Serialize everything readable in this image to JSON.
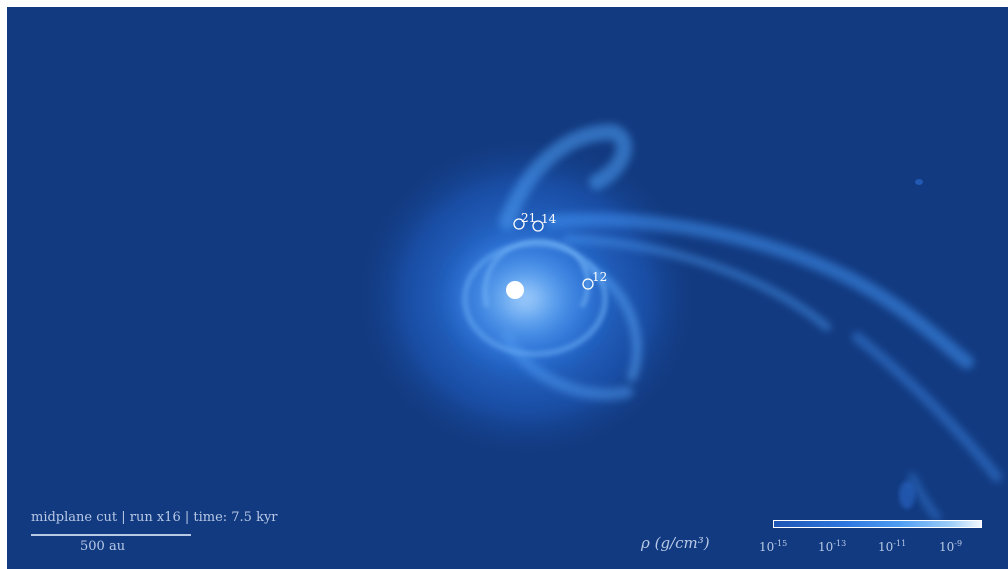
{
  "caption": "midplane cut | run x16 | time: 7.5 kyr",
  "scalebar": {
    "label": "500 au"
  },
  "colorbar": {
    "title": "ρ (g/cm³)",
    "ticks": [
      {
        "base": "10",
        "exp": "-15"
      },
      {
        "base": "10",
        "exp": "-13"
      },
      {
        "base": "10",
        "exp": "-11"
      },
      {
        "base": "10",
        "exp": "-9"
      }
    ]
  },
  "sinks": [
    {
      "label": "21"
    },
    {
      "label": "14"
    },
    {
      "label": "12"
    }
  ],
  "colors": {
    "background": "#123a80",
    "disk_glow": "#2f7ae8",
    "filament": "#5aa6f5",
    "sink_marker": "#ffffff"
  }
}
